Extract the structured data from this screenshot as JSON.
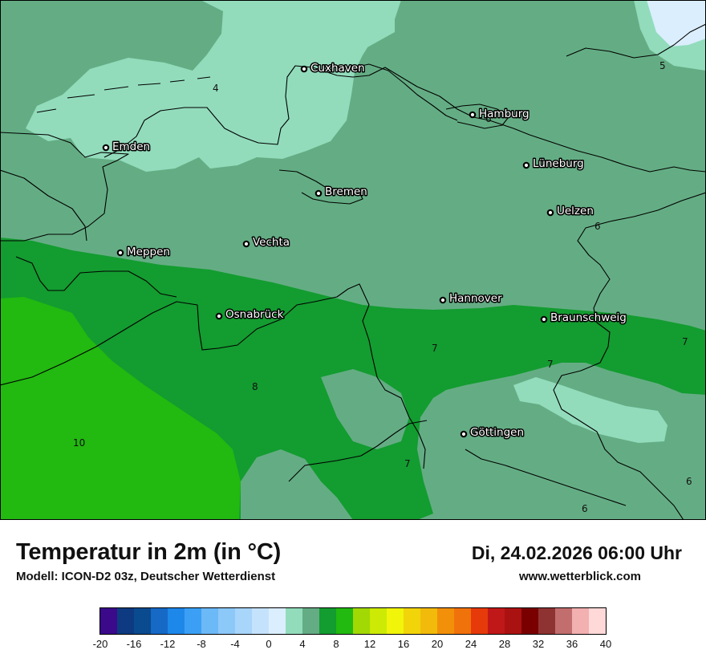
{
  "map": {
    "cities": [
      {
        "name": "Cuxhaven"
      },
      {
        "name": "Hamburg"
      },
      {
        "name": "Emden"
      },
      {
        "name": "Lüneburg"
      },
      {
        "name": "Bremen"
      },
      {
        "name": "Uelzen"
      },
      {
        "name": "Vechta"
      },
      {
        "name": "Meppen"
      },
      {
        "name": "Hannover"
      },
      {
        "name": "Osnabrück"
      },
      {
        "name": "Braunschweig"
      },
      {
        "name": "Göttingen"
      }
    ],
    "isotherm_labels": [
      "4",
      "5",
      "6",
      "6",
      "7",
      "7",
      "7",
      "7",
      "8",
      "10",
      "6",
      "6"
    ]
  },
  "footer": {
    "title": "Temperatur in 2m (in °C)",
    "subtitle": "Modell: ICON-D2 03z, Deutscher Wetterdienst",
    "datetime": "Di, 24.02.2026 06:00 Uhr",
    "website": "www.wetterblick.com"
  },
  "legend": {
    "colors": [
      "#3a0a8a",
      "#0d3a80",
      "#0a4a8e",
      "#1669c5",
      "#1e87ea",
      "#3ba0f5",
      "#6cb9f7",
      "#8cc8f8",
      "#a8d5fa",
      "#c5e2fc",
      "#daeefd",
      "#92dcbc",
      "#64ad84",
      "#139c30",
      "#22b910",
      "#a2d804",
      "#ccea04",
      "#f0f50a",
      "#f2d40a",
      "#f2ba0a",
      "#f2900a",
      "#f0720a",
      "#e63a0a",
      "#c01818",
      "#aa1212",
      "#7a0000",
      "#8f3232",
      "#c26e6e",
      "#f2b0b0",
      "#ffd8d8"
    ],
    "ticks": [
      "-20",
      "-16",
      "-12",
      "-8",
      "-4",
      "0",
      "4",
      "8",
      "12",
      "16",
      "20",
      "24",
      "28",
      "32",
      "36",
      "40"
    ]
  }
}
